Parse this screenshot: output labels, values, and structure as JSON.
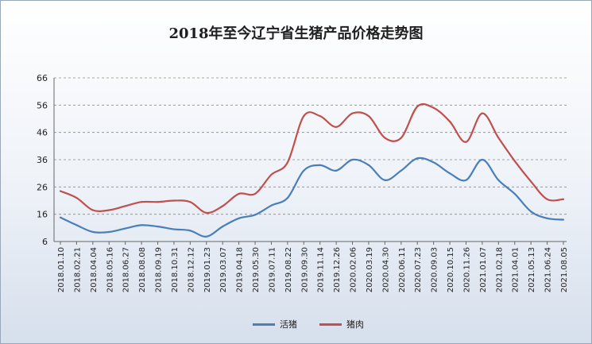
{
  "chart_data": {
    "type": "line",
    "title": "2018年至今辽宁省生猪产品价格走势图",
    "ylim": [
      6,
      66
    ],
    "yticks": [
      6,
      16,
      26,
      36,
      46,
      56,
      66
    ],
    "grid": true,
    "legend_position": "bottom",
    "x": [
      "2018.01.10",
      "2018.02.21",
      "2018.04.04",
      "2018.05.16",
      "2018.06.27",
      "2018.08.08",
      "2018.09.19",
      "2018.10.31",
      "2018.12.12",
      "2019.01.23",
      "2019.03.07",
      "2019.04.18",
      "2019.05.30",
      "2019.07.11",
      "2019.08.22",
      "2019.09.30",
      "2019.11.14",
      "2019.12.26",
      "2020.02.06",
      "2020.03.19",
      "2020.04.30",
      "2020.06.11",
      "2020.07.23",
      "2020.09.03",
      "2020.10.15",
      "2020.11.26",
      "2021.01.07",
      "2021.02.18",
      "2021.04.01",
      "2021.05.13",
      "2021.06.24",
      "2021.08.05"
    ],
    "series": [
      {
        "name": "活猪",
        "color": "#4a7ebb",
        "values": [
          14.8,
          12.0,
          9.5,
          9.5,
          10.8,
          12.0,
          11.5,
          10.5,
          10.0,
          7.8,
          11.5,
          14.5,
          15.8,
          19.2,
          22.0,
          32.0,
          34.0,
          32.0,
          36.0,
          34.0,
          28.5,
          32.0,
          36.5,
          35.0,
          31.0,
          28.5,
          36.0,
          28.5,
          23.5,
          17.0,
          14.5,
          14.0
        ]
      },
      {
        "name": "猪肉",
        "color": "#c0504d",
        "values": [
          24.5,
          22.0,
          17.5,
          17.5,
          19.0,
          20.5,
          20.5,
          21.0,
          20.5,
          16.5,
          19.0,
          23.5,
          23.5,
          30.5,
          35.0,
          52.0,
          52.0,
          48.0,
          53.0,
          52.0,
          44.0,
          44.0,
          55.5,
          55.0,
          50.0,
          42.5,
          53.0,
          44.0,
          35.5,
          28.0,
          21.5,
          21.5
        ]
      }
    ]
  }
}
